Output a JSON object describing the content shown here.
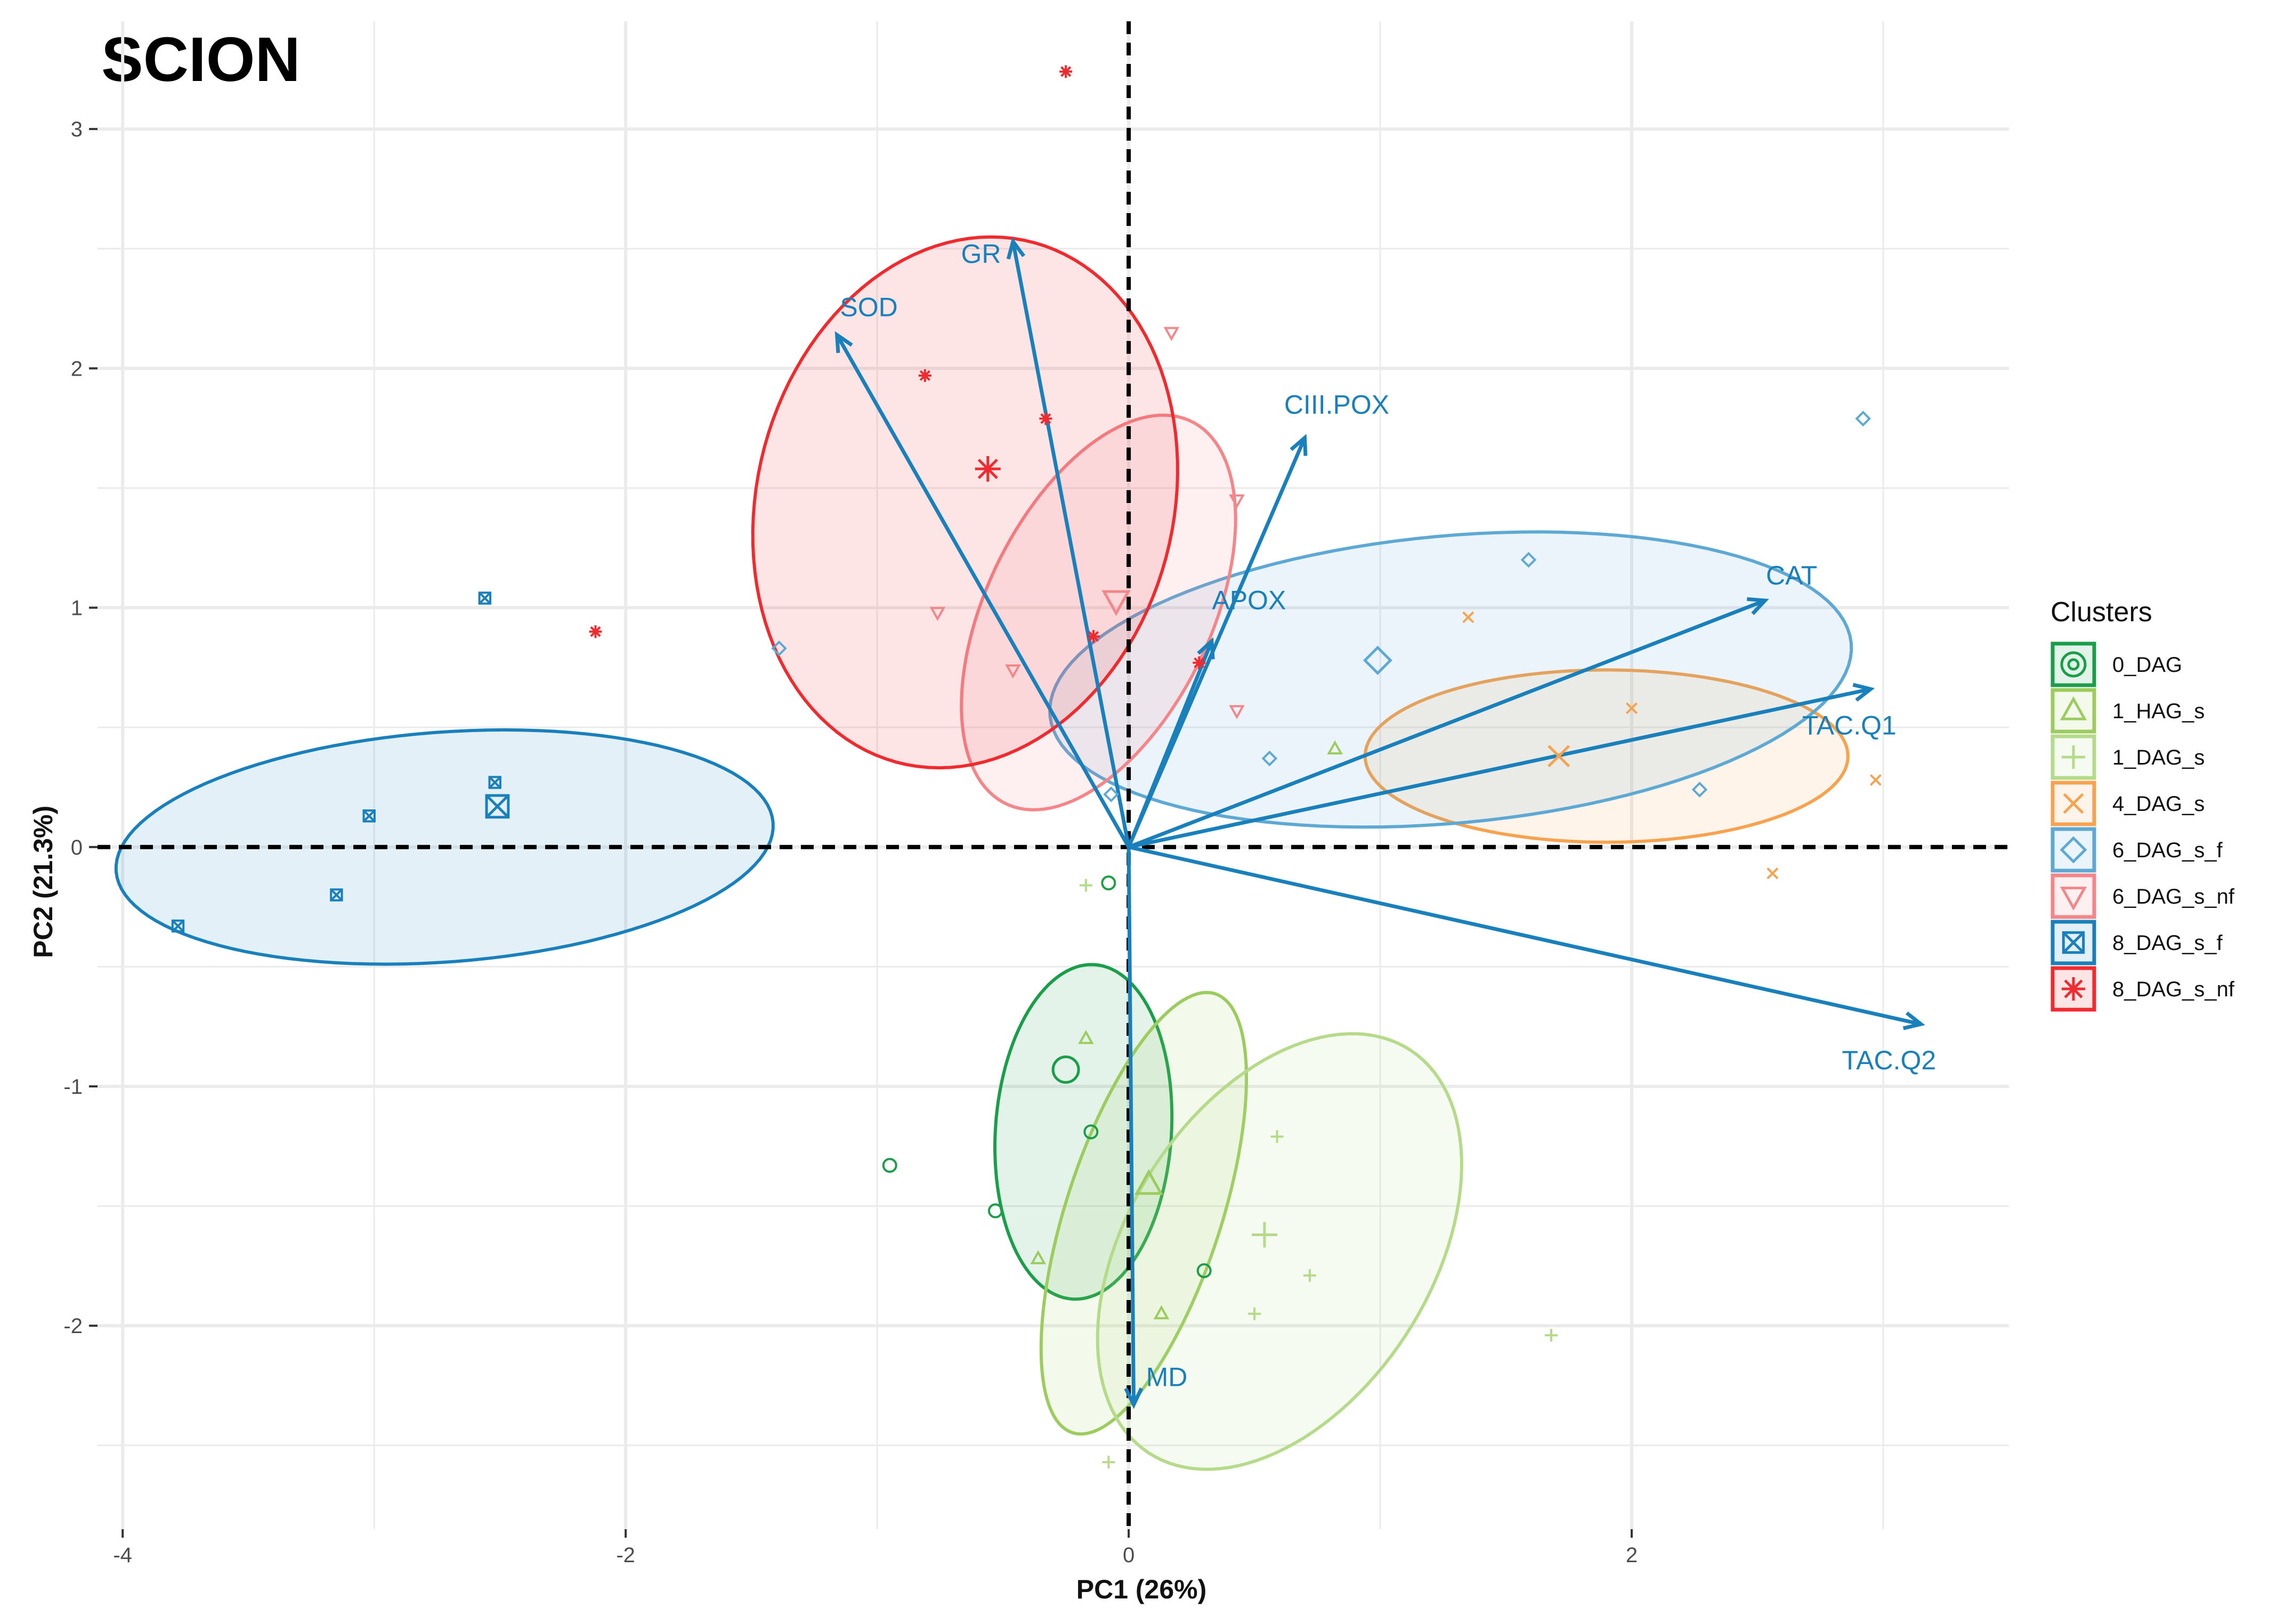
{
  "chart_data": {
    "type": "scatter",
    "subtype": "pca_biplot",
    "title": "SCION",
    "xlabel": "PC1 (26%)",
    "ylabel": "PC2 (21.3%)",
    "xlim": [
      -4.1,
      3.5
    ],
    "ylim": [
      -2.85,
      3.45
    ],
    "x_ticks": [
      -4,
      -2,
      0,
      2
    ],
    "y_ticks": [
      -2,
      -1,
      0,
      1,
      2,
      3
    ],
    "x_tick_labels": [
      "-4",
      "-2",
      "0",
      "2"
    ],
    "y_tick_labels": [
      "-2",
      "-1",
      "0",
      "1",
      "2",
      "3"
    ],
    "grid": true,
    "reference_lines": {
      "x": 0,
      "y": 0,
      "style": "dashed"
    },
    "legend": {
      "title": "Clusters",
      "position": "right",
      "entries": [
        "0_DAG",
        "1_HAG_s",
        "1_DAG_s",
        "4_DAG_s",
        "6_DAG_s_f",
        "6_DAG_s_nf",
        "8_DAG_s_f",
        "8_DAG_s_nf"
      ]
    },
    "loading_color": "#1a80bb",
    "loadings": [
      {
        "name": "SOD",
        "x": -1.16,
        "y": 2.14
      },
      {
        "name": "GR",
        "x": -0.46,
        "y": 2.53
      },
      {
        "name": "CIII.POX",
        "x": 0.7,
        "y": 1.71
      },
      {
        "name": "APOX",
        "x": 0.33,
        "y": 0.86
      },
      {
        "name": "CAT",
        "x": 2.53,
        "y": 1.03
      },
      {
        "name": "TAC.Q1",
        "x": 2.95,
        "y": 0.66
      },
      {
        "name": "TAC.Q2",
        "x": 3.15,
        "y": -0.74
      },
      {
        "name": "MD",
        "x": 0.02,
        "y": -2.33
      }
    ],
    "series": [
      {
        "name": "0_DAG",
        "color": "#1a9e4a",
        "marker": "circle",
        "centroid": {
          "x": -0.25,
          "y": -0.93
        },
        "ellipse": {
          "cx": -0.18,
          "cy": -1.19,
          "rx": 0.7,
          "ry": 0.35,
          "angle": 86.5
        },
        "points": [
          {
            "x": -0.08,
            "y": -0.15
          },
          {
            "x": -0.15,
            "y": -1.19
          },
          {
            "x": -0.95,
            "y": -1.33
          },
          {
            "x": -0.53,
            "y": -1.52
          },
          {
            "x": 0.3,
            "y": -1.77
          }
        ]
      },
      {
        "name": "1_HAG_s",
        "color": "#9ccc5e",
        "marker": "triangle-up",
        "centroid": {
          "x": 0.08,
          "y": -1.41
        },
        "ellipse": {
          "cx": 0.06,
          "cy": -1.53,
          "rx": 0.96,
          "ry": 0.31,
          "angle": 73
        },
        "points": [
          {
            "x": -0.17,
            "y": -0.8
          },
          {
            "x": -0.36,
            "y": -1.72
          },
          {
            "x": 0.13,
            "y": -1.95
          },
          {
            "x": 0.82,
            "y": 0.41
          }
        ]
      },
      {
        "name": "1_DAG_s",
        "color": "#b5db8a",
        "marker": "plus",
        "centroid": {
          "x": 0.54,
          "y": -1.62
        },
        "ellipse": {
          "cx": 0.6,
          "cy": -1.69,
          "rx": 0.99,
          "ry": 0.61,
          "angle": 60
        },
        "points": [
          {
            "x": -0.17,
            "y": -0.16
          },
          {
            "x": 0.59,
            "y": -1.21
          },
          {
            "x": 0.72,
            "y": -1.79
          },
          {
            "x": 0.5,
            "y": -1.95
          },
          {
            "x": 1.68,
            "y": -2.04
          },
          {
            "x": -0.08,
            "y": -2.57
          }
        ]
      },
      {
        "name": "4_DAG_s",
        "color": "#f7a24f",
        "marker": "cross",
        "centroid": {
          "x": 1.71,
          "y": 0.38
        },
        "ellipse": {
          "cx": 1.9,
          "cy": 0.38,
          "rx": 0.96,
          "ry": 0.36,
          "angle": 0
        },
        "points": [
          {
            "x": 1.35,
            "y": 0.96
          },
          {
            "x": 2.0,
            "y": 0.58
          },
          {
            "x": 2.97,
            "y": 0.28
          },
          {
            "x": 2.56,
            "y": -0.11
          }
        ]
      },
      {
        "name": "6_DAG_s_f",
        "color": "#5ea8d4",
        "marker": "diamond",
        "centroid": {
          "x": 0.99,
          "y": 0.78
        },
        "ellipse": {
          "cx": 1.28,
          "cy": 0.7,
          "rx": 1.6,
          "ry": 0.6,
          "angle": 5.5
        },
        "points": [
          {
            "x": -1.39,
            "y": 0.83
          },
          {
            "x": 1.59,
            "y": 1.2
          },
          {
            "x": 2.92,
            "y": 1.79
          },
          {
            "x": 0.56,
            "y": 0.37
          },
          {
            "x": 2.27,
            "y": 0.24
          },
          {
            "x": -0.07,
            "y": 0.22
          }
        ]
      },
      {
        "name": "6_DAG_s_nf",
        "color": "#f4868a",
        "marker": "triangle-down",
        "centroid": {
          "x": -0.05,
          "y": 1.03
        },
        "ellipse": {
          "cx": -0.12,
          "cy": 0.98,
          "rx": 0.88,
          "ry": 0.45,
          "angle": 66
        },
        "points": [
          {
            "x": -0.76,
            "y": 0.98
          },
          {
            "x": 0.43,
            "y": 1.45
          },
          {
            "x": 0.43,
            "y": 0.57
          },
          {
            "x": -0.46,
            "y": 0.74
          },
          {
            "x": 0.17,
            "y": 2.15
          }
        ]
      },
      {
        "name": "8_DAG_s_f",
        "color": "#1a80bb",
        "marker": "boxed-x",
        "centroid": {
          "x": -2.51,
          "y": 0.17
        },
        "ellipse": {
          "cx": -2.72,
          "cy": 0.0,
          "rx": 1.31,
          "ry": 0.48,
          "angle": 4.5
        },
        "points": [
          {
            "x": -2.56,
            "y": 1.04
          },
          {
            "x": -2.52,
            "y": 0.27
          },
          {
            "x": -3.02,
            "y": 0.13
          },
          {
            "x": -3.15,
            "y": -0.2
          },
          {
            "x": -3.78,
            "y": -0.33
          }
        ]
      },
      {
        "name": "8_DAG_s_nf",
        "color": "#ef2b2f",
        "marker": "asterisk",
        "centroid": {
          "x": -0.56,
          "y": 1.58
        },
        "ellipse": {
          "cx": -0.65,
          "cy": 1.44,
          "rx": 1.12,
          "ry": 0.83,
          "angle": 78
        },
        "points": [
          {
            "x": -0.25,
            "y": 3.24
          },
          {
            "x": -0.81,
            "y": 1.97
          },
          {
            "x": -0.33,
            "y": 1.79
          },
          {
            "x": -2.12,
            "y": 0.9
          },
          {
            "x": -0.14,
            "y": 0.88
          },
          {
            "x": 0.28,
            "y": 0.77
          }
        ]
      }
    ]
  }
}
